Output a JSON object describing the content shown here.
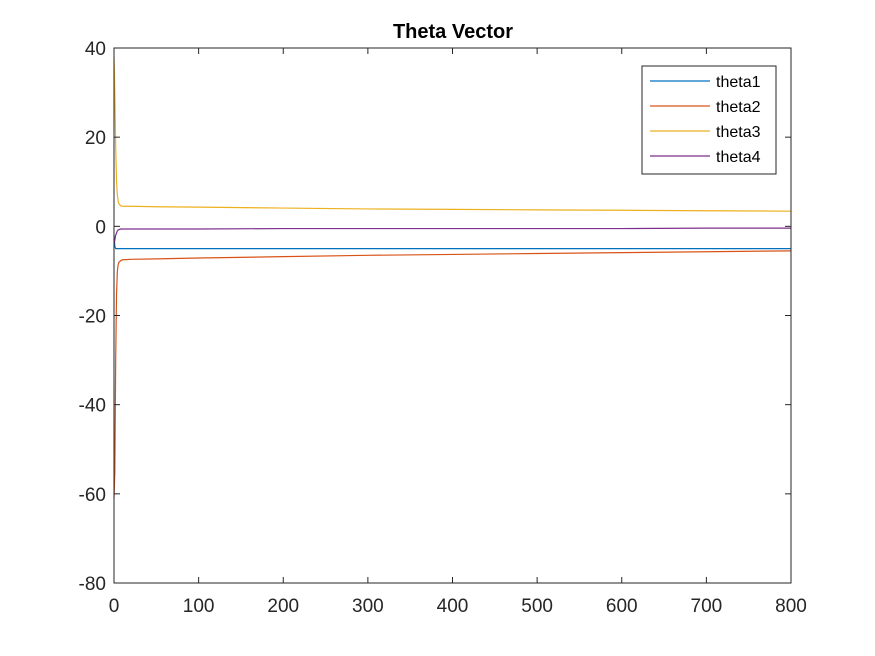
{
  "chart_data": {
    "type": "line",
    "title": "Theta Vector",
    "xlabel": "",
    "ylabel": "",
    "xlim": [
      0,
      800
    ],
    "ylim": [
      -80,
      40
    ],
    "xticks": [
      0,
      100,
      200,
      300,
      400,
      500,
      600,
      700,
      800
    ],
    "yticks": [
      -80,
      -60,
      -40,
      -20,
      0,
      20,
      40
    ],
    "xtick_labels": [
      "0",
      "100",
      "200",
      "300",
      "400",
      "500",
      "600",
      "700",
      "800"
    ],
    "ytick_labels": [
      "-80",
      "-60",
      "-40",
      "-20",
      "0",
      "20",
      "40"
    ],
    "grid": false,
    "legend_position": "top-right",
    "series": [
      {
        "name": "theta1",
        "color": "#0072BD",
        "x": [
          0,
          1,
          2,
          3,
          5,
          10,
          50,
          100,
          200,
          300,
          400,
          500,
          600,
          700,
          800
        ],
        "y": [
          -2,
          -4.5,
          -5,
          -5,
          -5,
          -5,
          -5,
          -5,
          -5,
          -5,
          -5,
          -5,
          -5,
          -5,
          -5
        ]
      },
      {
        "name": "theta2",
        "color": "#D95319",
        "x": [
          0,
          1,
          2,
          3,
          4,
          5,
          6,
          8,
          10,
          20,
          50,
          100,
          200,
          300,
          400,
          500,
          600,
          700,
          800
        ],
        "y": [
          -61,
          -55,
          -30,
          -15,
          -10,
          -8.5,
          -8,
          -7.7,
          -7.5,
          -7.4,
          -7.3,
          -7.1,
          -6.8,
          -6.5,
          -6.3,
          -6.1,
          -5.9,
          -5.7,
          -5.5
        ]
      },
      {
        "name": "theta3",
        "color": "#EDB120",
        "x": [
          0,
          1,
          2,
          3,
          4,
          5,
          6,
          8,
          10,
          20,
          50,
          100,
          200,
          300,
          400,
          500,
          600,
          700,
          800
        ],
        "y": [
          38,
          30,
          18,
          10,
          7,
          5.5,
          5,
          4.6,
          4.5,
          4.5,
          4.4,
          4.3,
          4.1,
          3.9,
          3.8,
          3.7,
          3.6,
          3.5,
          3.4
        ]
      },
      {
        "name": "theta4",
        "color": "#7E2F8E",
        "x": [
          0,
          1,
          2,
          3,
          4,
          5,
          8,
          10,
          50,
          100,
          200,
          300,
          400,
          500,
          600,
          700,
          800
        ],
        "y": [
          -4,
          -3,
          -2,
          -1.5,
          -1,
          -0.8,
          -0.6,
          -0.6,
          -0.6,
          -0.6,
          -0.5,
          -0.5,
          -0.5,
          -0.5,
          -0.5,
          -0.4,
          -0.4
        ]
      }
    ]
  }
}
